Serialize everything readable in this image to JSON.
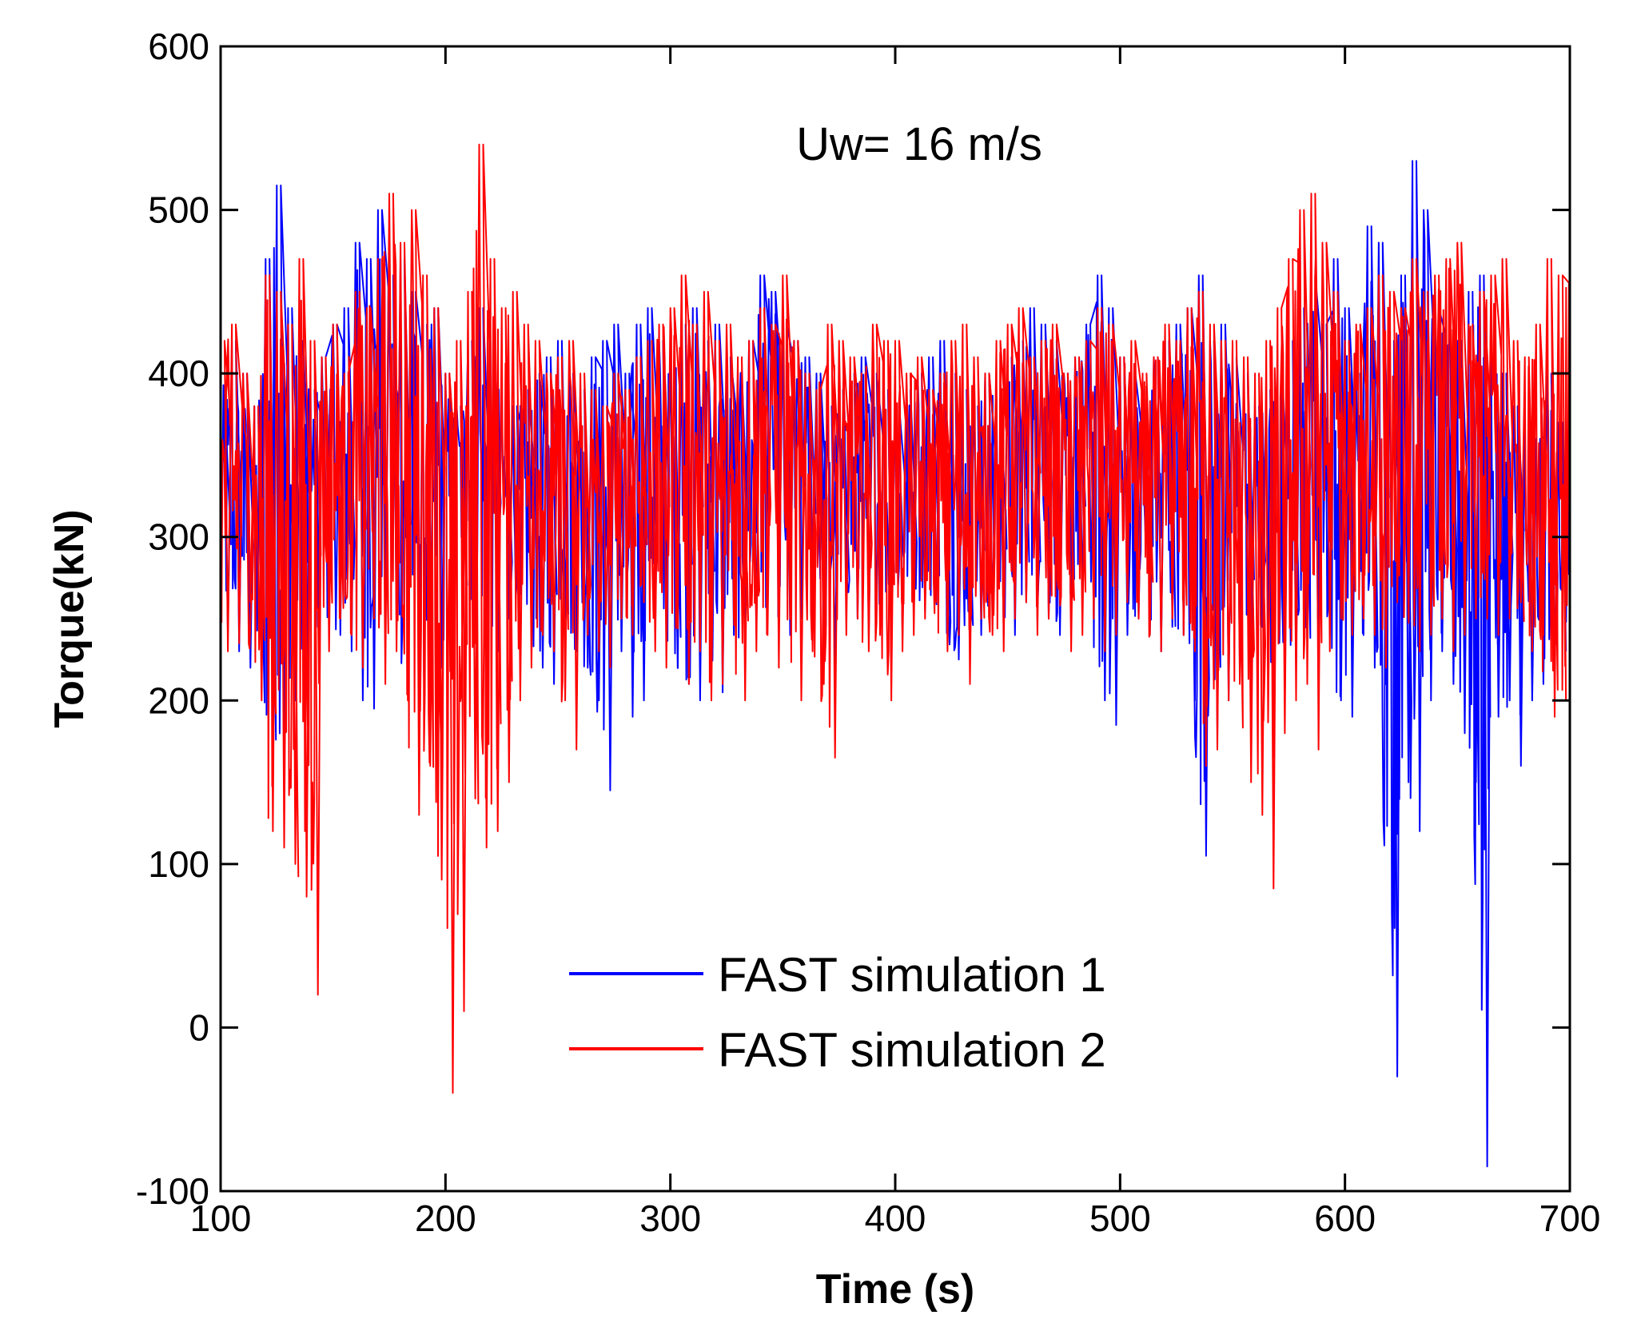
{
  "chart_data": {
    "type": "line",
    "title": "",
    "annotation": "Uw= 16 m/s",
    "xlabel": "Time (s)",
    "ylabel": "Torque(kN)",
    "xlim": [
      100,
      700
    ],
    "ylim": [
      -100,
      600
    ],
    "xticks": [
      100,
      200,
      300,
      400,
      500,
      600,
      700
    ],
    "yticks": [
      -100,
      0,
      100,
      200,
      300,
      400,
      500,
      600
    ],
    "xtick_labels": [
      "100",
      "200",
      "300",
      "400",
      "500",
      "600",
      "700"
    ],
    "ytick_labels": [
      "-100",
      "0",
      "100",
      "200",
      "300",
      "400",
      "500",
      "600"
    ],
    "grid": false,
    "legend_position": "lower-center",
    "series": [
      {
        "name": "FAST simulation 1",
        "color": "#0000ff",
        "x": [
          100,
          105,
          110,
          115,
          120,
          125,
          130,
          135,
          140,
          145,
          150,
          155,
          160,
          165,
          170,
          175,
          180,
          185,
          190,
          195,
          200,
          205,
          210,
          215,
          220,
          225,
          230,
          235,
          240,
          245,
          250,
          255,
          260,
          265,
          270,
          275,
          280,
          285,
          290,
          295,
          300,
          305,
          310,
          315,
          320,
          325,
          330,
          335,
          340,
          345,
          350,
          355,
          360,
          365,
          370,
          375,
          380,
          385,
          390,
          395,
          400,
          405,
          410,
          415,
          420,
          425,
          430,
          435,
          440,
          445,
          450,
          455,
          460,
          465,
          470,
          475,
          480,
          485,
          490,
          495,
          500,
          505,
          510,
          515,
          520,
          525,
          530,
          535,
          540,
          545,
          550,
          555,
          560,
          565,
          570,
          575,
          580,
          585,
          590,
          595,
          600,
          605,
          610,
          615,
          620,
          625,
          630,
          635,
          640,
          645,
          650,
          655,
          660,
          665,
          670,
          675,
          680,
          685,
          690,
          695,
          700
        ],
        "min": [
          240,
          230,
          220,
          205,
          155,
          160,
          200,
          220,
          245,
          250,
          240,
          230,
          200,
          195,
          250,
          245,
          210,
          195,
          200,
          220,
          230,
          290,
          250,
          240,
          230,
          250,
          265,
          240,
          220,
          210,
          250,
          230,
          220,
          200,
          145,
          230,
          190,
          200,
          240,
          245,
          220,
          210,
          200,
          240,
          205,
          240,
          230,
          240,
          250,
          250,
          240,
          250,
          255,
          250,
          220,
          260,
          250,
          240,
          250,
          250,
          240,
          250,
          255,
          260,
          240,
          225,
          230,
          240,
          250,
          240,
          240,
          260,
          250,
          250,
          240,
          245,
          260,
          250,
          200,
          185,
          240,
          250,
          240,
          230,
          245,
          240,
          200,
          105,
          180,
          200,
          220,
          240,
          245,
          200,
          210,
          220,
          240,
          230,
          240,
          200,
          190,
          240,
          220,
          210,
          -30,
          150,
          120,
          200,
          230,
          210,
          180,
          150,
          -85,
          190,
          200,
          160,
          200,
          210,
          220,
          230,
          230
        ],
        "max": [
          390,
          420,
          400,
          380,
          470,
          515,
          440,
          420,
          390,
          410,
          430,
          440,
          480,
          470,
          500,
          460,
          470,
          450,
          430,
          440,
          400,
          380,
          420,
          440,
          420,
          400,
          380,
          390,
          400,
          410,
          420,
          400,
          390,
          410,
          420,
          430,
          400,
          430,
          440,
          420,
          410,
          430,
          440,
          420,
          430,
          410,
          400,
          420,
          460,
          450,
          430,
          420,
          410,
          400,
          380,
          390,
          400,
          410,
          400,
          390,
          380,
          390,
          400,
          410,
          420,
          400,
          390,
          380,
          400,
          390,
          410,
          420,
          440,
          430,
          420,
          400,
          410,
          430,
          460,
          440,
          410,
          400,
          390,
          410,
          420,
          430,
          440,
          460,
          420,
          430,
          410,
          400,
          380,
          390,
          410,
          420,
          440,
          460,
          430,
          470,
          440,
          400,
          490,
          480,
          420,
          460,
          530,
          500,
          440,
          430,
          420,
          450,
          460,
          410,
          400,
          380,
          370,
          360,
          400,
          370,
          370
        ]
      },
      {
        "name": "FAST simulation 2",
        "color": "#ff0000",
        "x": [
          100,
          105,
          110,
          115,
          120,
          125,
          130,
          135,
          140,
          145,
          150,
          155,
          160,
          165,
          170,
          175,
          180,
          185,
          190,
          195,
          200,
          205,
          210,
          215,
          220,
          225,
          230,
          235,
          240,
          245,
          250,
          255,
          260,
          265,
          270,
          275,
          280,
          285,
          290,
          295,
          300,
          305,
          310,
          315,
          320,
          325,
          330,
          335,
          340,
          345,
          350,
          355,
          360,
          365,
          370,
          375,
          380,
          385,
          390,
          395,
          400,
          405,
          410,
          415,
          420,
          425,
          430,
          435,
          440,
          445,
          450,
          455,
          460,
          465,
          470,
          475,
          480,
          485,
          490,
          495,
          500,
          505,
          510,
          515,
          520,
          525,
          530,
          535,
          540,
          545,
          550,
          555,
          560,
          565,
          570,
          575,
          580,
          585,
          590,
          595,
          600,
          605,
          610,
          615,
          620,
          625,
          630,
          635,
          640,
          645,
          650,
          655,
          660,
          665,
          670,
          675,
          680,
          685,
          690,
          695,
          700
        ],
        "min": [
          230,
          235,
          260,
          200,
          120,
          110,
          100,
          80,
          20,
          230,
          250,
          240,
          220,
          250,
          210,
          230,
          200,
          130,
          160,
          150,
          -40,
          10,
          140,
          110,
          120,
          150,
          200,
          220,
          240,
          230,
          200,
          170,
          240,
          230,
          220,
          250,
          240,
          260,
          230,
          220,
          250,
          210,
          230,
          200,
          210,
          250,
          200,
          230,
          240,
          220,
          250,
          200,
          230,
          210,
          165,
          240,
          250,
          230,
          240,
          200,
          230,
          240,
          250,
          260,
          230,
          240,
          210,
          250,
          240,
          230,
          250,
          260,
          240,
          250,
          260,
          230,
          240,
          250,
          230,
          240,
          260,
          250,
          240,
          230,
          250,
          240,
          230,
          160,
          170,
          200,
          210,
          150,
          130,
          85,
          180,
          200,
          210,
          170,
          230,
          250,
          240,
          250,
          240,
          220,
          260,
          250,
          230,
          240,
          250,
          230,
          240,
          250,
          250,
          240,
          250,
          260,
          230,
          240,
          190,
          200,
          175
        ],
        "max": [
          420,
          430,
          400,
          380,
          460,
          450,
          430,
          470,
          420,
          410,
          430,
          400,
          450,
          440,
          470,
          510,
          480,
          500,
          460,
          440,
          400,
          420,
          450,
          540,
          470,
          440,
          450,
          430,
          420,
          400,
          410,
          420,
          400,
          390,
          380,
          400,
          390,
          410,
          420,
          430,
          440,
          460,
          430,
          450,
          420,
          430,
          410,
          420,
          440,
          430,
          460,
          420,
          400,
          390,
          430,
          420,
          410,
          400,
          430,
          420,
          420,
          400,
          410,
          390,
          400,
          420,
          430,
          410,
          400,
          420,
          430,
          440,
          410,
          420,
          430,
          400,
          410,
          420,
          440,
          430,
          410,
          420,
          400,
          410,
          430,
          420,
          440,
          450,
          430,
          420,
          420,
          410,
          400,
          420,
          440,
          470,
          500,
          510,
          480,
          450,
          420,
          430,
          440,
          460,
          450,
          440,
          470,
          450,
          460,
          470,
          480,
          430,
          450,
          460,
          470,
          420,
          410,
          430,
          470,
          460,
          470
        ]
      }
    ]
  }
}
